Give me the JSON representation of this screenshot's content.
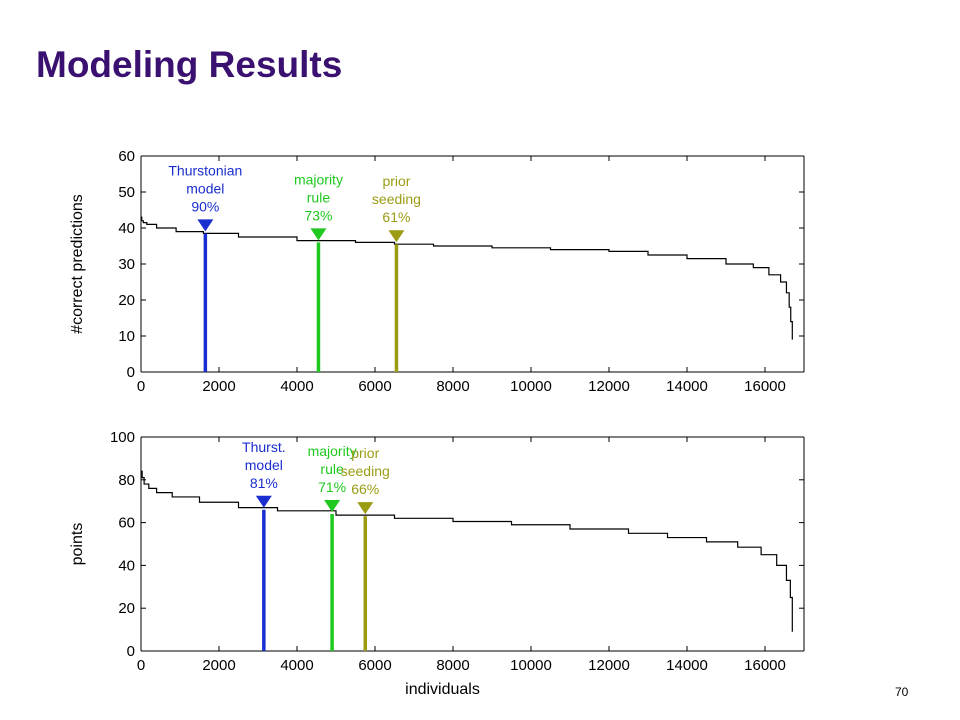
{
  "slide": {
    "title": "Modeling Results",
    "slide_number": "70"
  },
  "colors": {
    "title": "#3a1070",
    "thurstonian": "#1a2ed0",
    "majority": "#1ec81e",
    "prior": "#9c9c14",
    "curve": "#000000"
  },
  "chart_data": [
    {
      "type": "line",
      "ylabel": "#correct predictions",
      "xlabel": "",
      "xlim": [
        0,
        17000
      ],
      "ylim": [
        0,
        60
      ],
      "xticks": [
        0,
        2000,
        4000,
        6000,
        8000,
        10000,
        12000,
        14000,
        16000
      ],
      "yticks": [
        0,
        10,
        20,
        30,
        40,
        50,
        60
      ],
      "series": [
        {
          "x": [
            0,
            20,
            60,
            150,
            400,
            900,
            1600,
            2500,
            4000,
            5500,
            6500,
            7500,
            9000,
            10500,
            12000,
            13000,
            14000,
            15000,
            15700,
            16100,
            16400,
            16550,
            16620,
            16660,
            16700
          ],
          "y": [
            43,
            42,
            41.5,
            41,
            40,
            39,
            38.5,
            37.5,
            36.5,
            36,
            35.5,
            35,
            34.5,
            34,
            33.5,
            32.5,
            31.5,
            30,
            29,
            27,
            25,
            22,
            18,
            14,
            9
          ]
        }
      ],
      "markers": [
        {
          "label_lines": [
            "Thurstonian",
            "model",
            "90%"
          ],
          "x": 1650,
          "y": 38.5,
          "color": "#1a2ed0"
        },
        {
          "label_lines": [
            "majority",
            "rule",
            "73%"
          ],
          "x": 4550,
          "y": 36,
          "color": "#1ec81e"
        },
        {
          "label_lines": [
            "prior",
            "seeding",
            "61%"
          ],
          "x": 6550,
          "y": 35.5,
          "color": "#9c9c14"
        }
      ]
    },
    {
      "type": "line",
      "ylabel": "points",
      "xlabel": "individuals",
      "xlim": [
        0,
        17000
      ],
      "ylim": [
        0,
        100
      ],
      "xticks": [
        0,
        2000,
        4000,
        6000,
        8000,
        10000,
        12000,
        14000,
        16000
      ],
      "yticks": [
        0,
        20,
        40,
        60,
        80,
        100
      ],
      "series": [
        {
          "x": [
            0,
            30,
            80,
            200,
            400,
            800,
            1500,
            2500,
            3500,
            5000,
            6500,
            8000,
            9500,
            11000,
            12500,
            13500,
            14500,
            15300,
            15900,
            16300,
            16550,
            16650,
            16700
          ],
          "y": [
            84,
            81,
            78,
            76,
            74,
            72,
            69.5,
            67,
            65.5,
            63.5,
            62,
            60.5,
            59,
            57,
            55,
            53,
            51,
            48.5,
            45,
            40,
            33,
            25,
            9
          ]
        }
      ],
      "markers": [
        {
          "label_lines": [
            "Thurst.",
            "model",
            "81%"
          ],
          "x": 3150,
          "y": 66,
          "color": "#1a2ed0"
        },
        {
          "label_lines": [
            "majority",
            "rule",
            "71%"
          ],
          "x": 4900,
          "y": 64,
          "color": "#1ec81e"
        },
        {
          "label_lines": [
            "prior",
            "seeding",
            "66%"
          ],
          "x": 5750,
          "y": 63,
          "color": "#9c9c14"
        }
      ]
    }
  ]
}
